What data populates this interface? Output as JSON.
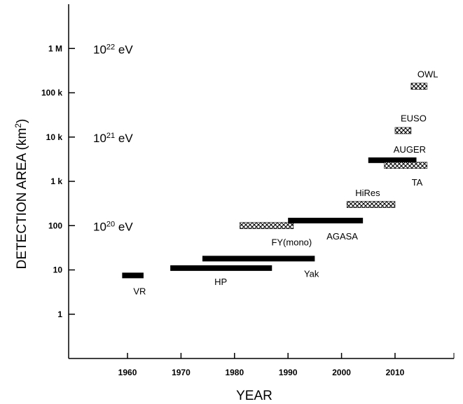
{
  "chart_data": {
    "type": "bar",
    "xlabel": "YEAR",
    "ylabel": "DETECTION AREA (km²)",
    "ylabel_parts": {
      "main": "DETECTION  AREA (km",
      "sup": "2",
      "end": ")"
    },
    "xlim": [
      1949,
      2021
    ],
    "ylim": [
      0.1,
      10000000
    ],
    "yscale": "log",
    "x_ticks": [
      1960,
      1970,
      1980,
      1990,
      2000,
      2010
    ],
    "x_tick_labels": [
      "1960",
      "1970",
      "1980",
      "1990",
      "2000",
      "2010"
    ],
    "y_ticks": [
      1,
      10,
      100,
      1000,
      10000,
      100000,
      1000000
    ],
    "y_tick_labels": [
      "1",
      "10",
      "100",
      "1 k",
      "10 k",
      "100 k",
      "1 M"
    ],
    "energy_labels": [
      {
        "base": "10",
        "exp": "20",
        "unit": " eV",
        "y": 100
      },
      {
        "base": "10",
        "exp": "21",
        "unit": " eV",
        "y": 10000
      },
      {
        "base": "10",
        "exp": "22",
        "unit": " eV",
        "y": 1000000
      }
    ],
    "experiments": [
      {
        "name": "VR",
        "start": 1959,
        "end": 1963,
        "area": 7.5,
        "style": "solid"
      },
      {
        "name": "HP",
        "start": 1968,
        "end": 1987,
        "area": 11,
        "style": "solid"
      },
      {
        "name": "Yak",
        "start": 1974,
        "end": 1995,
        "area": 18,
        "style": "solid"
      },
      {
        "name": "FY(mono)",
        "start": 1981,
        "end": 1991,
        "area": 100,
        "style": "hatched"
      },
      {
        "name": "AGASA",
        "start": 1990,
        "end": 2004,
        "area": 130,
        "style": "solid"
      },
      {
        "name": "HiRes",
        "start": 2001,
        "end": 2010,
        "area": 300,
        "style": "hatched"
      },
      {
        "name": "AUGER",
        "start": 2005,
        "end": 2014,
        "area": 3000,
        "style": "solid"
      },
      {
        "name": "TA",
        "start": 2008,
        "end": 2016,
        "area": 2300,
        "style": "hatched"
      },
      {
        "name": "EUSO",
        "start": 2010,
        "end": 2013,
        "area": 14000,
        "style": "hatched"
      },
      {
        "name": "OWL",
        "start": 2013,
        "end": 2016,
        "area": 140000,
        "style": "hatched"
      }
    ]
  }
}
